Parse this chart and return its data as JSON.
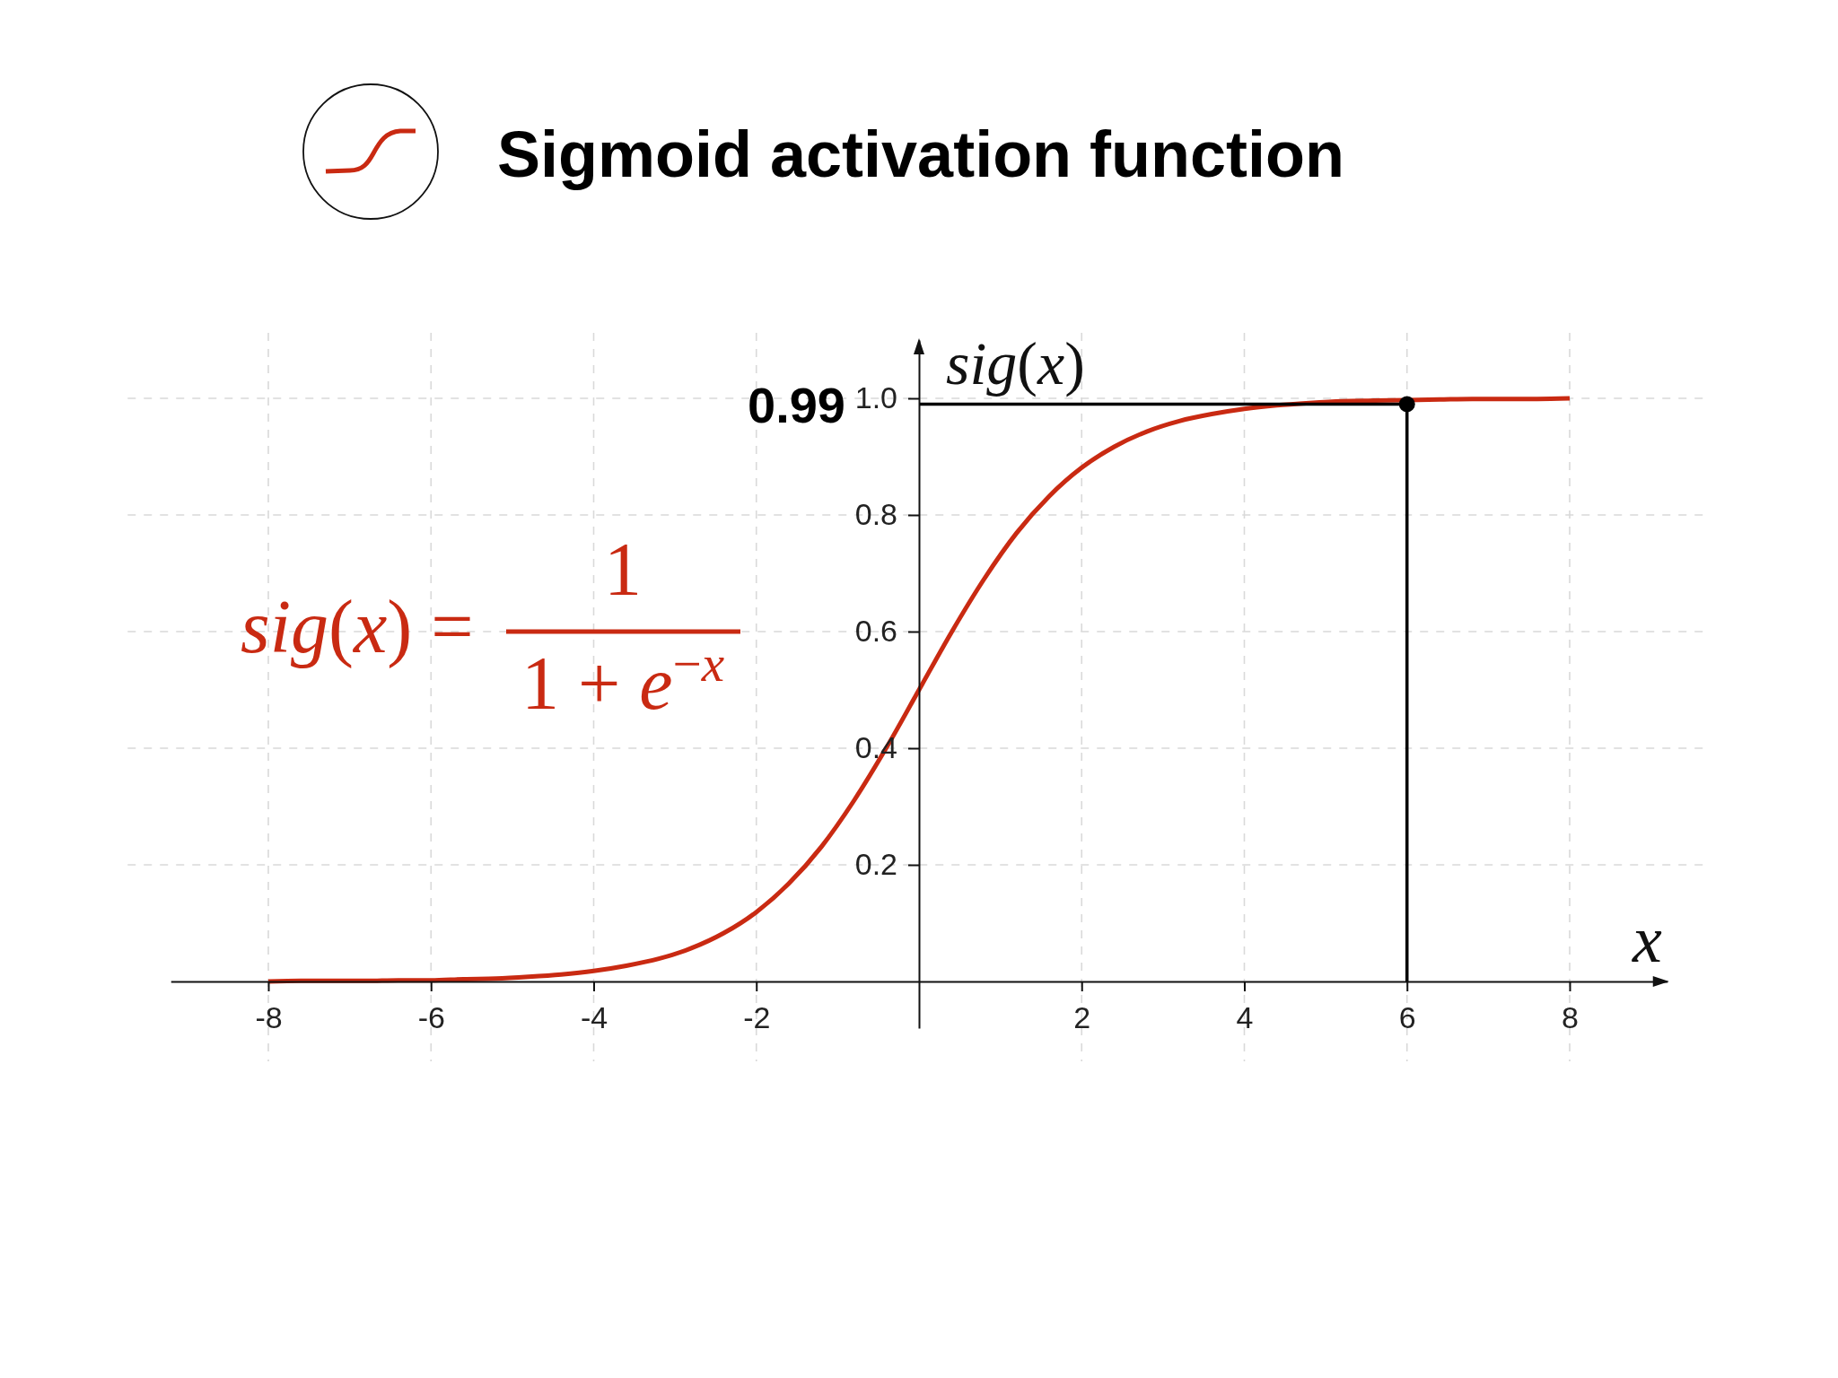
{
  "chart_data": {
    "type": "line",
    "title": "Sigmoid activation function",
    "xlabel": "x",
    "ylabel": "sig(x)",
    "series": [
      {
        "color": "#c92a12",
        "x": [
          -8,
          -7.6,
          -7.2,
          -6.8,
          -6.4,
          -6,
          -5.6,
          -5.2,
          -4.8,
          -4.4,
          -4,
          -3.6,
          -3.2,
          -2.8,
          -2.4,
          -2,
          -1.6,
          -1.2,
          -0.8,
          -0.4,
          0,
          0.4,
          0.8,
          1.2,
          1.6,
          2,
          2.4,
          2.8,
          3.2,
          3.6,
          4,
          4.4,
          4.8,
          5.2,
          5.6,
          6.4,
          6.8,
          7.2,
          7.6,
          8
        ],
        "values": [
          0,
          0.001,
          0.001,
          0.001,
          0.002,
          0.002,
          0.004,
          0.005,
          0.008,
          0.012,
          0.018,
          0.027,
          0.039,
          0.057,
          0.083,
          0.119,
          0.168,
          0.231,
          0.31,
          0.401,
          0.5,
          0.599,
          0.69,
          0.769,
          0.832,
          0.881,
          0.917,
          0.943,
          0.961,
          0.973,
          0.982,
          0.988,
          0.992,
          0.995,
          0.996,
          0.998,
          0.999,
          0.999,
          0.999,
          1
        ]
      },
      {
        "color": "#000000",
        "x": [
          0,
          6,
          6
        ],
        "values": [
          0.99,
          0.99,
          0
        ]
      },
      {
        "type": "scatter",
        "color": "#000000",
        "marker": "circle",
        "x": [
          6
        ],
        "values": [
          0.99
        ]
      }
    ],
    "annotations": [
      {
        "text": "0.99",
        "x": 0,
        "y": 0.99
      },
      "sig(x) =",
      "1",
      "1 + e$^{−x}$"
    ],
    "xlim": [
      -9.2,
      9.2
    ],
    "ylim": [
      -0.08,
      1.1
    ],
    "xticks": [
      -8,
      -6,
      -4,
      -2,
      2,
      4,
      6,
      8
    ],
    "yticks": [
      0.2,
      0.4,
      0.6,
      0.8,
      {
        "value": 1,
        "label": "1.0"
      }
    ],
    "grid": true
  }
}
